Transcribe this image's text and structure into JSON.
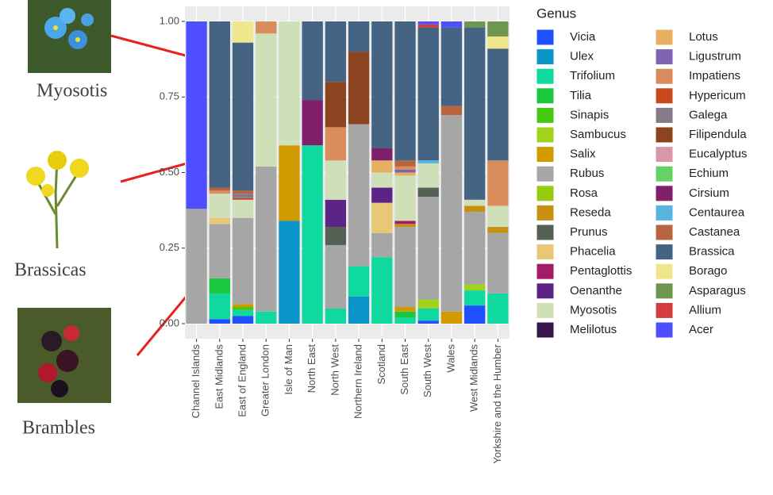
{
  "chart_data": {
    "type": "stacked_bar",
    "categories": [
      "Channel Islands",
      "East Midlands",
      "East of England",
      "Greater London",
      "Isle of Man",
      "North East",
      "North West",
      "Northern Ireland",
      "Scotland",
      "South East",
      "South West",
      "Wales",
      "West Midlands",
      "Yorkshire and the Humber"
    ],
    "ylim": [
      0,
      1.04
    ],
    "yticks": [
      {
        "value": 0,
        "label": "0.00"
      },
      {
        "value": 0.25,
        "label": "0.25"
      },
      {
        "value": 0.5,
        "label": "0.50"
      },
      {
        "value": 0.75,
        "label": "0.75"
      },
      {
        "value": 1,
        "label": "1.00"
      }
    ],
    "grid": true,
    "legend_title": "Genus",
    "annotations": [
      "Myosotis",
      "Brassicas",
      "Brambles"
    ],
    "series": [
      {
        "name": "Vicia",
        "color": "#1f4fff",
        "values": [
          0,
          0.015,
          0.025,
          0,
          0,
          0,
          0,
          0,
          0,
          0,
          0.01,
          0,
          0.06,
          0
        ]
      },
      {
        "name": "Ulex",
        "color": "#0a96c8",
        "values": [
          0,
          0,
          0,
          0,
          0.34,
          0,
          0,
          0.09,
          0,
          0,
          0,
          0,
          0,
          0
        ]
      },
      {
        "name": "Trifolium",
        "color": "#10d9a0",
        "values": [
          0,
          0.085,
          0.02,
          0.04,
          0,
          0.59,
          0.05,
          0.1,
          0.22,
          0.02,
          0.04,
          0,
          0.05,
          0.1
        ]
      },
      {
        "name": "Tilia",
        "color": "#19c83c",
        "values": [
          0,
          0.05,
          0,
          0,
          0,
          0,
          0,
          0,
          0,
          0.02,
          0,
          0,
          0,
          0
        ]
      },
      {
        "name": "Sinapis",
        "color": "#45c810",
        "values": [
          0,
          0,
          0.01,
          0,
          0,
          0,
          0,
          0,
          0,
          0,
          0,
          0,
          0,
          0
        ]
      },
      {
        "name": "Sambucus",
        "color": "#a0d21e",
        "values": [
          0,
          0,
          0,
          0,
          0,
          0,
          0,
          0,
          0,
          0,
          0.03,
          0,
          0.02,
          0
        ]
      },
      {
        "name": "Salix",
        "color": "#d09a00",
        "values": [
          0,
          0,
          0.01,
          0,
          0.25,
          0,
          0,
          0,
          0,
          0.015,
          0,
          0.04,
          0,
          0
        ]
      },
      {
        "name": "Rubus",
        "color": "#a6a6a6",
        "values": [
          0.38,
          0.18,
          0.285,
          0.48,
          0,
          0,
          0.21,
          0.47,
          0.08,
          0.265,
          0.34,
          0.65,
          0.24,
          0.2
        ]
      },
      {
        "name": "Rosa",
        "color": "#96cc10",
        "values": [
          0,
          0,
          0,
          0,
          0,
          0,
          0,
          0,
          0,
          0,
          0,
          0,
          0,
          0
        ]
      },
      {
        "name": "Reseda",
        "color": "#c89010",
        "values": [
          0,
          0,
          0,
          0,
          0,
          0,
          0,
          0,
          0,
          0.01,
          0,
          0,
          0.02,
          0.02
        ]
      },
      {
        "name": "Prunus",
        "color": "#556055",
        "values": [
          0,
          0,
          0,
          0,
          0,
          0,
          0.06,
          0,
          0,
          0,
          0.03,
          0,
          0,
          0
        ]
      },
      {
        "name": "Phacelia",
        "color": "#e8c878",
        "values": [
          0,
          0.02,
          0,
          0,
          0,
          0,
          0,
          0,
          0.1,
          0,
          0,
          0,
          0,
          0
        ]
      },
      {
        "name": "Pentaglottis",
        "color": "#a51b68",
        "values": [
          0,
          0,
          0,
          0,
          0,
          0,
          0,
          0,
          0,
          0.01,
          0,
          0,
          0,
          0
        ]
      },
      {
        "name": "Oenanthe",
        "color": "#5b2486",
        "values": [
          0,
          0,
          0,
          0,
          0,
          0,
          0.09,
          0,
          0.05,
          0,
          0,
          0,
          0,
          0
        ]
      },
      {
        "name": "Myosotis",
        "color": "#cfe0b8",
        "values": [
          0,
          0.08,
          0.06,
          0.44,
          0.41,
          0,
          0.13,
          0,
          0.05,
          0.15,
          0.08,
          0,
          0.02,
          0.07
        ]
      },
      {
        "name": "Melilotus",
        "color": "#35154a",
        "values": [
          0,
          0,
          0,
          0,
          0,
          0,
          0,
          0,
          0,
          0,
          0,
          0,
          0,
          0
        ]
      },
      {
        "name": "Lotus",
        "color": "#e6b060",
        "values": [
          0,
          0,
          0,
          0,
          0,
          0,
          0,
          0,
          0.04,
          0.01,
          0,
          0,
          0,
          0
        ]
      },
      {
        "name": "Ligustrum",
        "color": "#7e64b0",
        "values": [
          0,
          0,
          0,
          0,
          0,
          0,
          0,
          0,
          0,
          0.01,
          0,
          0,
          0,
          0
        ]
      },
      {
        "name": "Impatiens",
        "color": "#d98c5c",
        "values": [
          0,
          0.01,
          0,
          0.04,
          0,
          0,
          0.11,
          0,
          0,
          0.01,
          0,
          0,
          0,
          0.15
        ]
      },
      {
        "name": "Hypericum",
        "color": "#c8481e",
        "values": [
          0,
          0,
          0.005,
          0,
          0,
          0,
          0,
          0,
          0,
          0,
          0,
          0,
          0,
          0
        ]
      },
      {
        "name": "Galega",
        "color": "#877a88",
        "values": [
          0,
          0,
          0.015,
          0,
          0,
          0,
          0,
          0,
          0,
          0,
          0,
          0,
          0,
          0
        ]
      },
      {
        "name": "Filipendula",
        "color": "#8c4420",
        "values": [
          0,
          0,
          0,
          0,
          0,
          0,
          0.15,
          0.24,
          0,
          0,
          0,
          0,
          0,
          0
        ]
      },
      {
        "name": "Eucalyptus",
        "color": "#dc96aa",
        "values": [
          0,
          0,
          0,
          0,
          0,
          0,
          0,
          0,
          0,
          0,
          0,
          0,
          0,
          0
        ]
      },
      {
        "name": "Echium",
        "color": "#64d264",
        "values": [
          0,
          0,
          0,
          0,
          0,
          0,
          0,
          0,
          0,
          0,
          0,
          0,
          0,
          0
        ]
      },
      {
        "name": "Cirsium",
        "color": "#80206a",
        "values": [
          0,
          0,
          0,
          0,
          0,
          0.15,
          0,
          0,
          0.04,
          0,
          0,
          0,
          0,
          0
        ]
      },
      {
        "name": "Centaurea",
        "color": "#5ab4e0",
        "values": [
          0,
          0,
          0,
          0,
          0,
          0,
          0,
          0,
          0,
          0,
          0.01,
          0,
          0,
          0
        ]
      },
      {
        "name": "Castanea",
        "color": "#b8643c",
        "values": [
          0,
          0.01,
          0.01,
          0,
          0,
          0,
          0,
          0,
          0,
          0.02,
          0,
          0.03,
          0,
          0
        ]
      },
      {
        "name": "Brassica",
        "color": "#456382",
        "values": [
          0,
          0.55,
          0.49,
          0,
          0,
          0.26,
          0.2,
          0.1,
          0.42,
          0.46,
          0.44,
          0.26,
          0.57,
          0.37
        ]
      },
      {
        "name": "Borago",
        "color": "#f0e68c",
        "values": [
          0,
          0,
          0.07,
          0,
          0,
          0,
          0,
          0,
          0,
          0,
          0,
          0,
          0,
          0.04
        ]
      },
      {
        "name": "Asparagus",
        "color": "#6e9650",
        "values": [
          0,
          0,
          0,
          0,
          0,
          0,
          0,
          0,
          0,
          0,
          0,
          0,
          0.02,
          0.05
        ]
      },
      {
        "name": "Allium",
        "color": "#d23c3c",
        "values": [
          0,
          0,
          0,
          0,
          0,
          0,
          0,
          0,
          0,
          0,
          0.01,
          0,
          0,
          0
        ]
      },
      {
        "name": "Acer",
        "color": "#4f4fff",
        "values": [
          0.62,
          0,
          0,
          0,
          0,
          0,
          0,
          0,
          0,
          0,
          0.01,
          0.02,
          0,
          0
        ]
      }
    ]
  }
}
